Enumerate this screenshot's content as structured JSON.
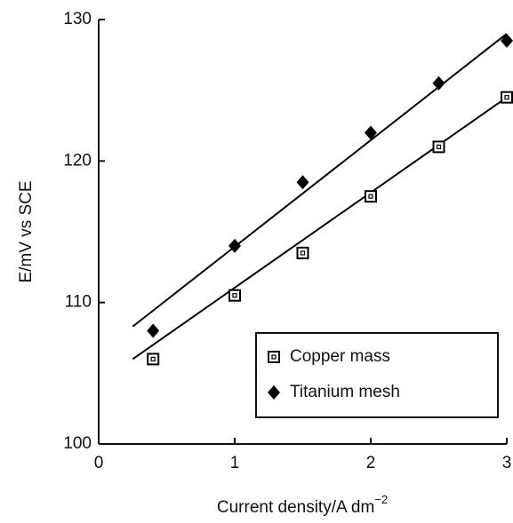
{
  "chart_data": {
    "type": "scatter",
    "x_label": "Current density/A dm",
    "x_label_exponent": "−2",
    "y_label": "E/mV vs SCE",
    "xlim": [
      0,
      3
    ],
    "xticks": [
      0,
      1,
      2,
      3
    ],
    "ylim": [
      100,
      130
    ],
    "yticks": [
      100,
      110,
      120,
      130
    ],
    "legend": "lower right",
    "series": [
      {
        "name": "Copper mass",
        "color": "#000000",
        "marker": "square",
        "x": [
          0.4,
          1,
          1.5,
          2,
          2.5,
          3
        ],
        "values": [
          106,
          110.5,
          113.5,
          117.5,
          121,
          124.5
        ],
        "fit": {
          "x": [
            0.25,
            3
          ],
          "values": [
            106,
            124.5
          ]
        }
      },
      {
        "name": "Titanium mesh",
        "color": "#000000",
        "marker": "diamond",
        "x": [
          0.4,
          1,
          1.5,
          2,
          2.5,
          3
        ],
        "values": [
          108,
          114,
          118.5,
          122,
          125.5,
          128.5
        ],
        "fit": {
          "x": [
            0.25,
            3
          ],
          "values": [
            108.3,
            129
          ]
        }
      }
    ]
  }
}
